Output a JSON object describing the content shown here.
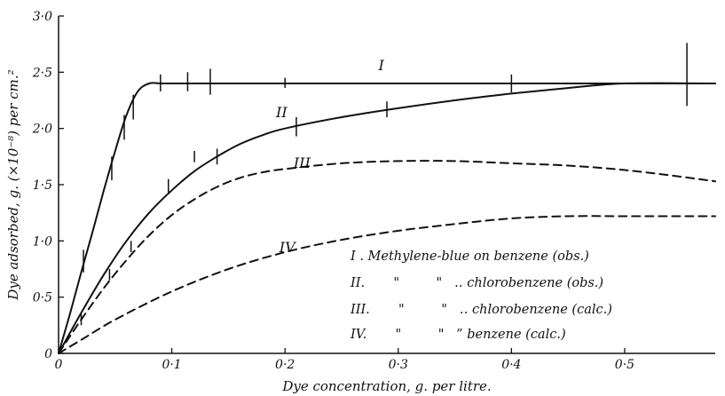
{
  "chart_data": {
    "type": "line",
    "xlabel": "Dye concentration, g. per litre.",
    "ylabel": "Dye adsorbed, g. (×10⁻⁸) per cm.²",
    "xlim": [
      0,
      0.58
    ],
    "ylim": [
      0,
      3.0
    ],
    "x_ticks": [
      0,
      0.1,
      0.2,
      0.3,
      0.4,
      0.5
    ],
    "x_tick_labels": [
      "0",
      "0·1",
      "0·2",
      "0·3",
      "0·4",
      "0·5"
    ],
    "y_ticks": [
      0,
      0.5,
      1.0,
      1.5,
      2.0,
      2.5,
      3.0
    ],
    "y_tick_labels": [
      "0",
      "0·5",
      "1·0",
      "1·5",
      "2·0",
      "2·5",
      "3·0"
    ],
    "grid": false,
    "series": [
      {
        "name": "I",
        "style": "solid",
        "x": [
          0,
          0.01,
          0.02,
          0.03,
          0.04,
          0.05,
          0.06,
          0.07,
          0.08,
          0.09,
          0.1,
          0.2,
          0.3,
          0.4,
          0.5,
          0.58
        ],
        "y": [
          0,
          0.35,
          0.72,
          1.08,
          1.45,
          1.8,
          2.12,
          2.33,
          2.4,
          2.4,
          2.4,
          2.4,
          2.4,
          2.4,
          2.4,
          2.4
        ],
        "error_bars": [
          {
            "x": 0.022,
            "y": 0.82,
            "lo": 0.72,
            "hi": 0.92
          },
          {
            "x": 0.047,
            "y": 1.64,
            "lo": 1.54,
            "hi": 1.75
          },
          {
            "x": 0.058,
            "y": 2.01,
            "lo": 1.9,
            "hi": 2.12
          },
          {
            "x": 0.066,
            "y": 2.19,
            "lo": 2.08,
            "hi": 2.3
          },
          {
            "x": 0.09,
            "y": 2.4,
            "lo": 2.33,
            "hi": 2.48
          },
          {
            "x": 0.114,
            "y": 2.4,
            "lo": 2.33,
            "hi": 2.5
          },
          {
            "x": 0.134,
            "y": 2.41,
            "lo": 2.3,
            "hi": 2.53
          },
          {
            "x": 0.2,
            "y": 2.4,
            "lo": 2.36,
            "hi": 2.45
          },
          {
            "x": 0.4,
            "y": 2.4,
            "lo": 2.32,
            "hi": 2.48
          },
          {
            "x": 0.555,
            "y": 2.42,
            "lo": 2.2,
            "hi": 2.76
          }
        ]
      },
      {
        "name": "II",
        "style": "solid",
        "x": [
          0,
          0.02,
          0.04,
          0.06,
          0.08,
          0.1,
          0.12,
          0.14,
          0.16,
          0.18,
          0.2,
          0.25,
          0.3,
          0.35,
          0.4,
          0.45,
          0.5,
          0.58
        ],
        "y": [
          0,
          0.36,
          0.7,
          1.0,
          1.25,
          1.45,
          1.62,
          1.75,
          1.86,
          1.94,
          2.0,
          2.1,
          2.18,
          2.25,
          2.31,
          2.36,
          2.4,
          2.4
        ],
        "error_bars": [
          {
            "x": 0.02,
            "y": 0.3,
            "lo": 0.25,
            "hi": 0.35
          },
          {
            "x": 0.045,
            "y": 0.7,
            "lo": 0.65,
            "hi": 0.75
          },
          {
            "x": 0.064,
            "y": 0.95,
            "lo": 0.9,
            "hi": 1.0
          },
          {
            "x": 0.097,
            "y": 1.48,
            "lo": 1.42,
            "hi": 1.55
          },
          {
            "x": 0.12,
            "y": 1.75,
            "lo": 1.7,
            "hi": 1.8
          },
          {
            "x": 0.14,
            "y": 1.75,
            "lo": 1.68,
            "hi": 1.82
          },
          {
            "x": 0.21,
            "y": 2.02,
            "lo": 1.93,
            "hi": 2.1
          },
          {
            "x": 0.29,
            "y": 2.17,
            "lo": 2.1,
            "hi": 2.24
          }
        ]
      },
      {
        "name": "III",
        "style": "dashed",
        "x": [
          0,
          0.02,
          0.04,
          0.06,
          0.08,
          0.1,
          0.12,
          0.14,
          0.16,
          0.18,
          0.2,
          0.25,
          0.3,
          0.35,
          0.4,
          0.45,
          0.5,
          0.55,
          0.58
        ],
        "y": [
          0,
          0.3,
          0.58,
          0.83,
          1.05,
          1.23,
          1.37,
          1.48,
          1.56,
          1.61,
          1.64,
          1.69,
          1.71,
          1.71,
          1.69,
          1.67,
          1.63,
          1.57,
          1.53
        ]
      },
      {
        "name": "IV",
        "style": "dashed",
        "x": [
          0,
          0.02,
          0.05,
          0.1,
          0.15,
          0.2,
          0.25,
          0.3,
          0.35,
          0.4,
          0.45,
          0.5,
          0.55,
          0.58
        ],
        "y": [
          0,
          0.12,
          0.3,
          0.55,
          0.75,
          0.9,
          1.01,
          1.09,
          1.15,
          1.2,
          1.22,
          1.22,
          1.22,
          1.22
        ]
      }
    ],
    "curve_labels": [
      {
        "text": "I",
        "x": 0.285,
        "y": 2.52
      },
      {
        "text": "II",
        "x": 0.197,
        "y": 2.1
      },
      {
        "text": "III",
        "x": 0.215,
        "y": 1.65
      },
      {
        "text": "IV",
        "x": 0.202,
        "y": 0.9
      }
    ],
    "legend": {
      "placement": "bottom-right",
      "entries": [
        {
          "text": "I . Methylene-blue on benzene (obs.)"
        },
        {
          "text": "II.       \"         \"   ‥ chlorobenzene (obs.)"
        },
        {
          "text": "III.       \"         \"   ‥ chlorobenzene (calc.)"
        },
        {
          "text": "IV.       \"         \"   ” benzene (calc.)"
        }
      ]
    }
  }
}
